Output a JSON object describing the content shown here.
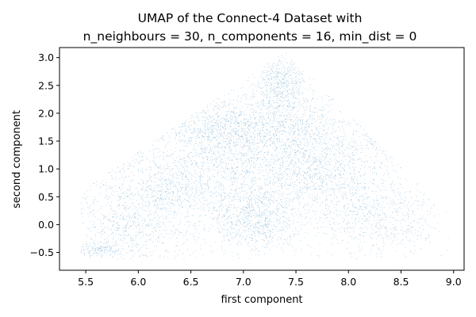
{
  "chart_data": {
    "type": "scatter",
    "title_line1": "UMAP of the Connect-4 Dataset with",
    "title_line2": "n_neighbours = 30, n_components = 16, min_dist = 0",
    "xlabel": "first component",
    "ylabel": "second component",
    "xlim": [
      5.25,
      9.1
    ],
    "ylim": [
      -0.82,
      3.18
    ],
    "xticks": [
      5.5,
      6.0,
      6.5,
      7.0,
      7.5,
      8.0,
      8.5,
      9.0
    ],
    "xtick_labels": [
      "5.5",
      "6.0",
      "6.5",
      "7.0",
      "7.5",
      "8.0",
      "8.5",
      "9.0"
    ],
    "yticks": [
      -0.5,
      0.0,
      0.5,
      1.0,
      1.5,
      2.0,
      2.5,
      3.0
    ],
    "ytick_labels": [
      "−0.5",
      "0.0",
      "0.5",
      "1.0",
      "1.5",
      "2.0",
      "2.5",
      "3.0"
    ],
    "grid": false,
    "point_color": "#1f77b4",
    "clusters": [
      {
        "x": 7.05,
        "y": 0.9,
        "sx": 0.85,
        "sy": 0.55,
        "n": 2600
      },
      {
        "x": 7.35,
        "y": 2.55,
        "sx": 0.12,
        "sy": 0.25,
        "n": 500
      },
      {
        "x": 6.8,
        "y": 1.7,
        "sx": 0.25,
        "sy": 0.3,
        "n": 800
      },
      {
        "x": 7.1,
        "y": 0.05,
        "sx": 0.2,
        "sy": 0.3,
        "n": 700
      },
      {
        "x": 5.9,
        "y": 0.0,
        "sx": 0.3,
        "sy": 0.35,
        "n": 600
      },
      {
        "x": 8.3,
        "y": 0.1,
        "sx": 0.3,
        "sy": 0.35,
        "n": 600
      },
      {
        "x": 8.5,
        "y": 1.8,
        "sx": 0.15,
        "sy": 0.25,
        "n": 300
      },
      {
        "x": 8.4,
        "y": 2.3,
        "sx": 0.08,
        "sy": 0.08,
        "n": 120
      },
      {
        "x": 7.95,
        "y": 2.3,
        "sx": 0.05,
        "sy": 0.05,
        "n": 60
      },
      {
        "x": 6.1,
        "y": 1.85,
        "sx": 0.1,
        "sy": 0.15,
        "n": 120
      },
      {
        "x": 5.6,
        "y": -0.45,
        "sx": 0.15,
        "sy": 0.06,
        "n": 150
      },
      {
        "x": 6.3,
        "y": 0.6,
        "sx": 0.15,
        "sy": 0.25,
        "n": 250
      },
      {
        "x": 7.7,
        "y": 1.2,
        "sx": 0.3,
        "sy": 0.4,
        "n": 600
      },
      {
        "x": 7.4,
        "y": 1.9,
        "sx": 0.25,
        "sy": 0.3,
        "n": 500
      }
    ]
  }
}
